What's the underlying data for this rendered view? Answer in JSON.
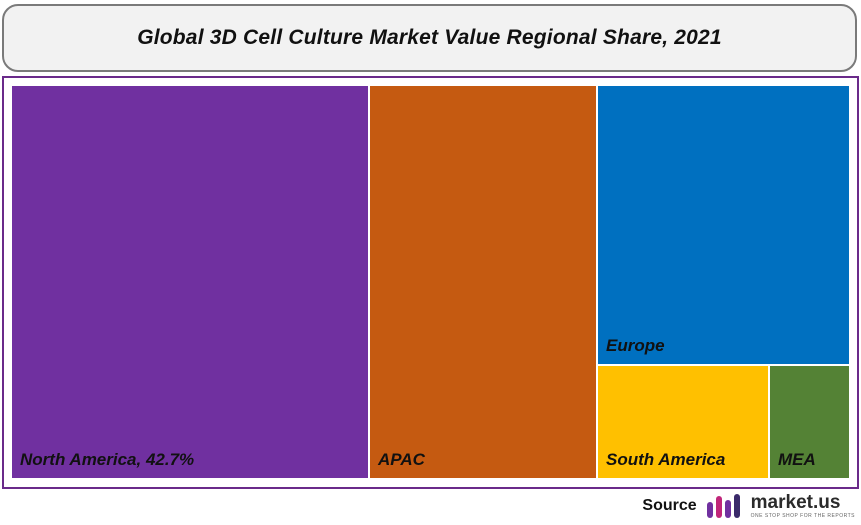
{
  "chart_data": {
    "type": "treemap",
    "title": "Global 3D Cell Culture Market Value Regional Share, 2021",
    "tiles": [
      {
        "name": "North America",
        "label": "North America, 42.7%",
        "color": "#7030a0"
      },
      {
        "name": "APAC",
        "label": "APAC",
        "color": "#c55a11"
      },
      {
        "name": "Europe",
        "label": "Europe",
        "color": "#0070c0"
      },
      {
        "name": "South America",
        "label": "South America",
        "color": "#ffc000"
      },
      {
        "name": "MEA",
        "label": "MEA",
        "color": "#548235"
      }
    ]
  },
  "footer": {
    "source_label": "Source",
    "brand_name": "market.us",
    "brand_tagline": "ONE STOP SHOP FOR THE REPORTS",
    "logo_icon": "market-us-logo-icon"
  }
}
